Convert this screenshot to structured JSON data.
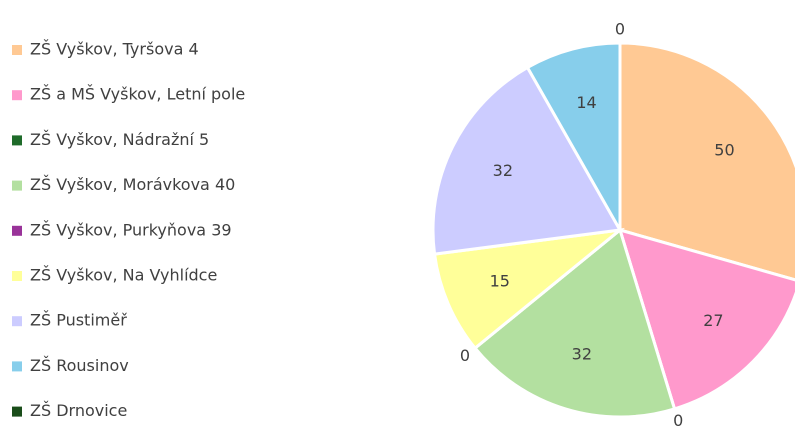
{
  "chart_data": {
    "type": "pie",
    "categories": [
      "ZŠ Vyškov, Tyršova 4",
      "ZŠ a MŠ Vyškov, Letní pole",
      "ZŠ Vyškov, Nádražní 5",
      "ZŠ Vyškov, Morávkova 40",
      "ZŠ Vyškov, Purkyňova 39",
      "ZŠ Vyškov, Na Vyhlídce",
      "ZŠ Pustiměř",
      "ZŠ Rousinov",
      "ZŠ Drnovice"
    ],
    "values": [
      50,
      27,
      0,
      32,
      0,
      15,
      32,
      14,
      0
    ],
    "colors": [
      "#ffc994",
      "#ff99cc",
      "#1f6b2a",
      "#b3e0a0",
      "#993399",
      "#ffff99",
      "#ccccff",
      "#87ceeb",
      "#1a4d1a"
    ],
    "legend": "left"
  }
}
